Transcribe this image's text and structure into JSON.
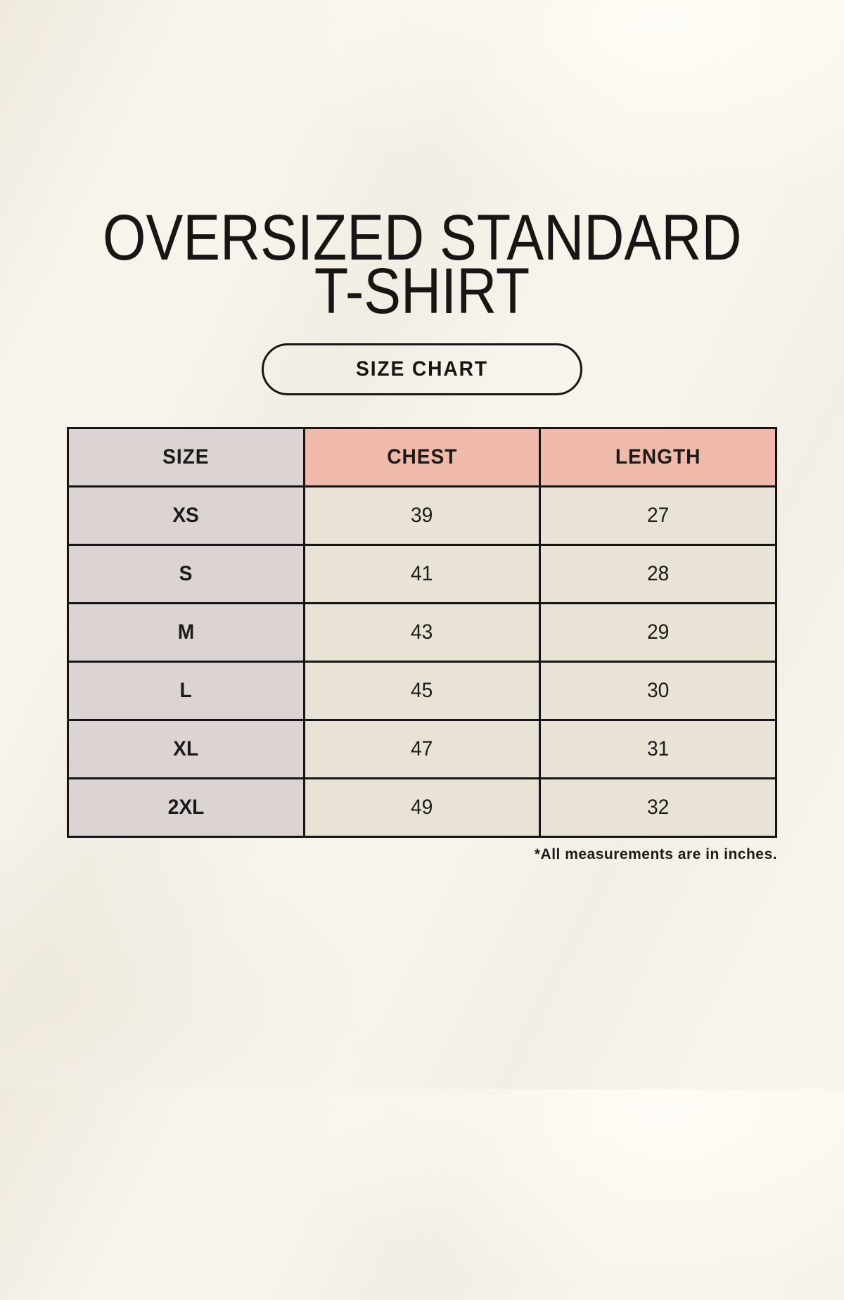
{
  "header": {
    "title_line1": "OVERSIZED STANDARD",
    "title_line2": "T-SHIRT",
    "badge_label": "SIZE CHART"
  },
  "size_table": {
    "headers": [
      "SIZE",
      "CHEST",
      "LENGTH"
    ],
    "rows": [
      [
        "XS",
        "39",
        "27"
      ],
      [
        "S",
        "41",
        "28"
      ],
      [
        "M",
        "43",
        "29"
      ],
      [
        "L",
        "45",
        "30"
      ],
      [
        "XL",
        "47",
        "31"
      ],
      [
        "2XL",
        "49",
        "32"
      ]
    ],
    "footnote": "*All measurements are in inches."
  },
  "colors": {
    "page_bg": "#f8f4ec",
    "size_column_bg": "#dcd4d2",
    "measurement_header_bg": "#efbaaa",
    "data_cell_bg": "#e9e3d6",
    "table_border": "#151515",
    "text": "#171614"
  }
}
